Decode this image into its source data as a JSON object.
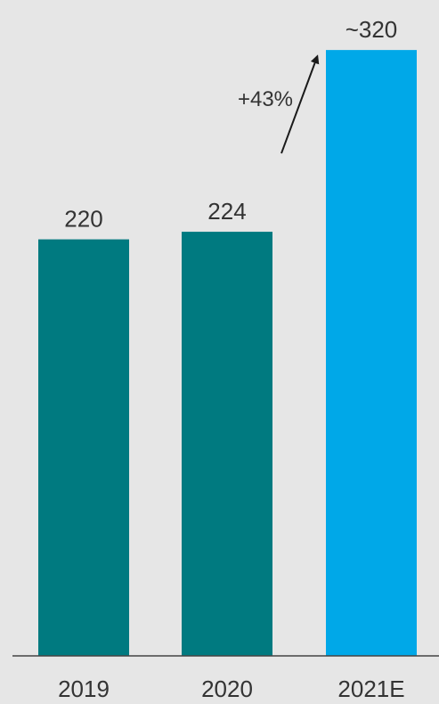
{
  "chart_data": {
    "type": "bar",
    "title": "",
    "xlabel": "",
    "ylabel": "",
    "categories": [
      "2019",
      "2020",
      "2021E"
    ],
    "values": [
      220,
      224,
      320
    ],
    "data_labels": [
      "220",
      "224",
      "~320"
    ],
    "bar_colors": [
      "#007a80",
      "#007a80",
      "#00a8e8"
    ],
    "ylim": [
      0,
      337
    ],
    "grid": false,
    "legend": "none",
    "annotation": {
      "text": "+43%",
      "arrow_from_category": "2020",
      "arrow_to_category": "2021E"
    },
    "axis_color": "#444444",
    "background": "#e6e6e6"
  }
}
